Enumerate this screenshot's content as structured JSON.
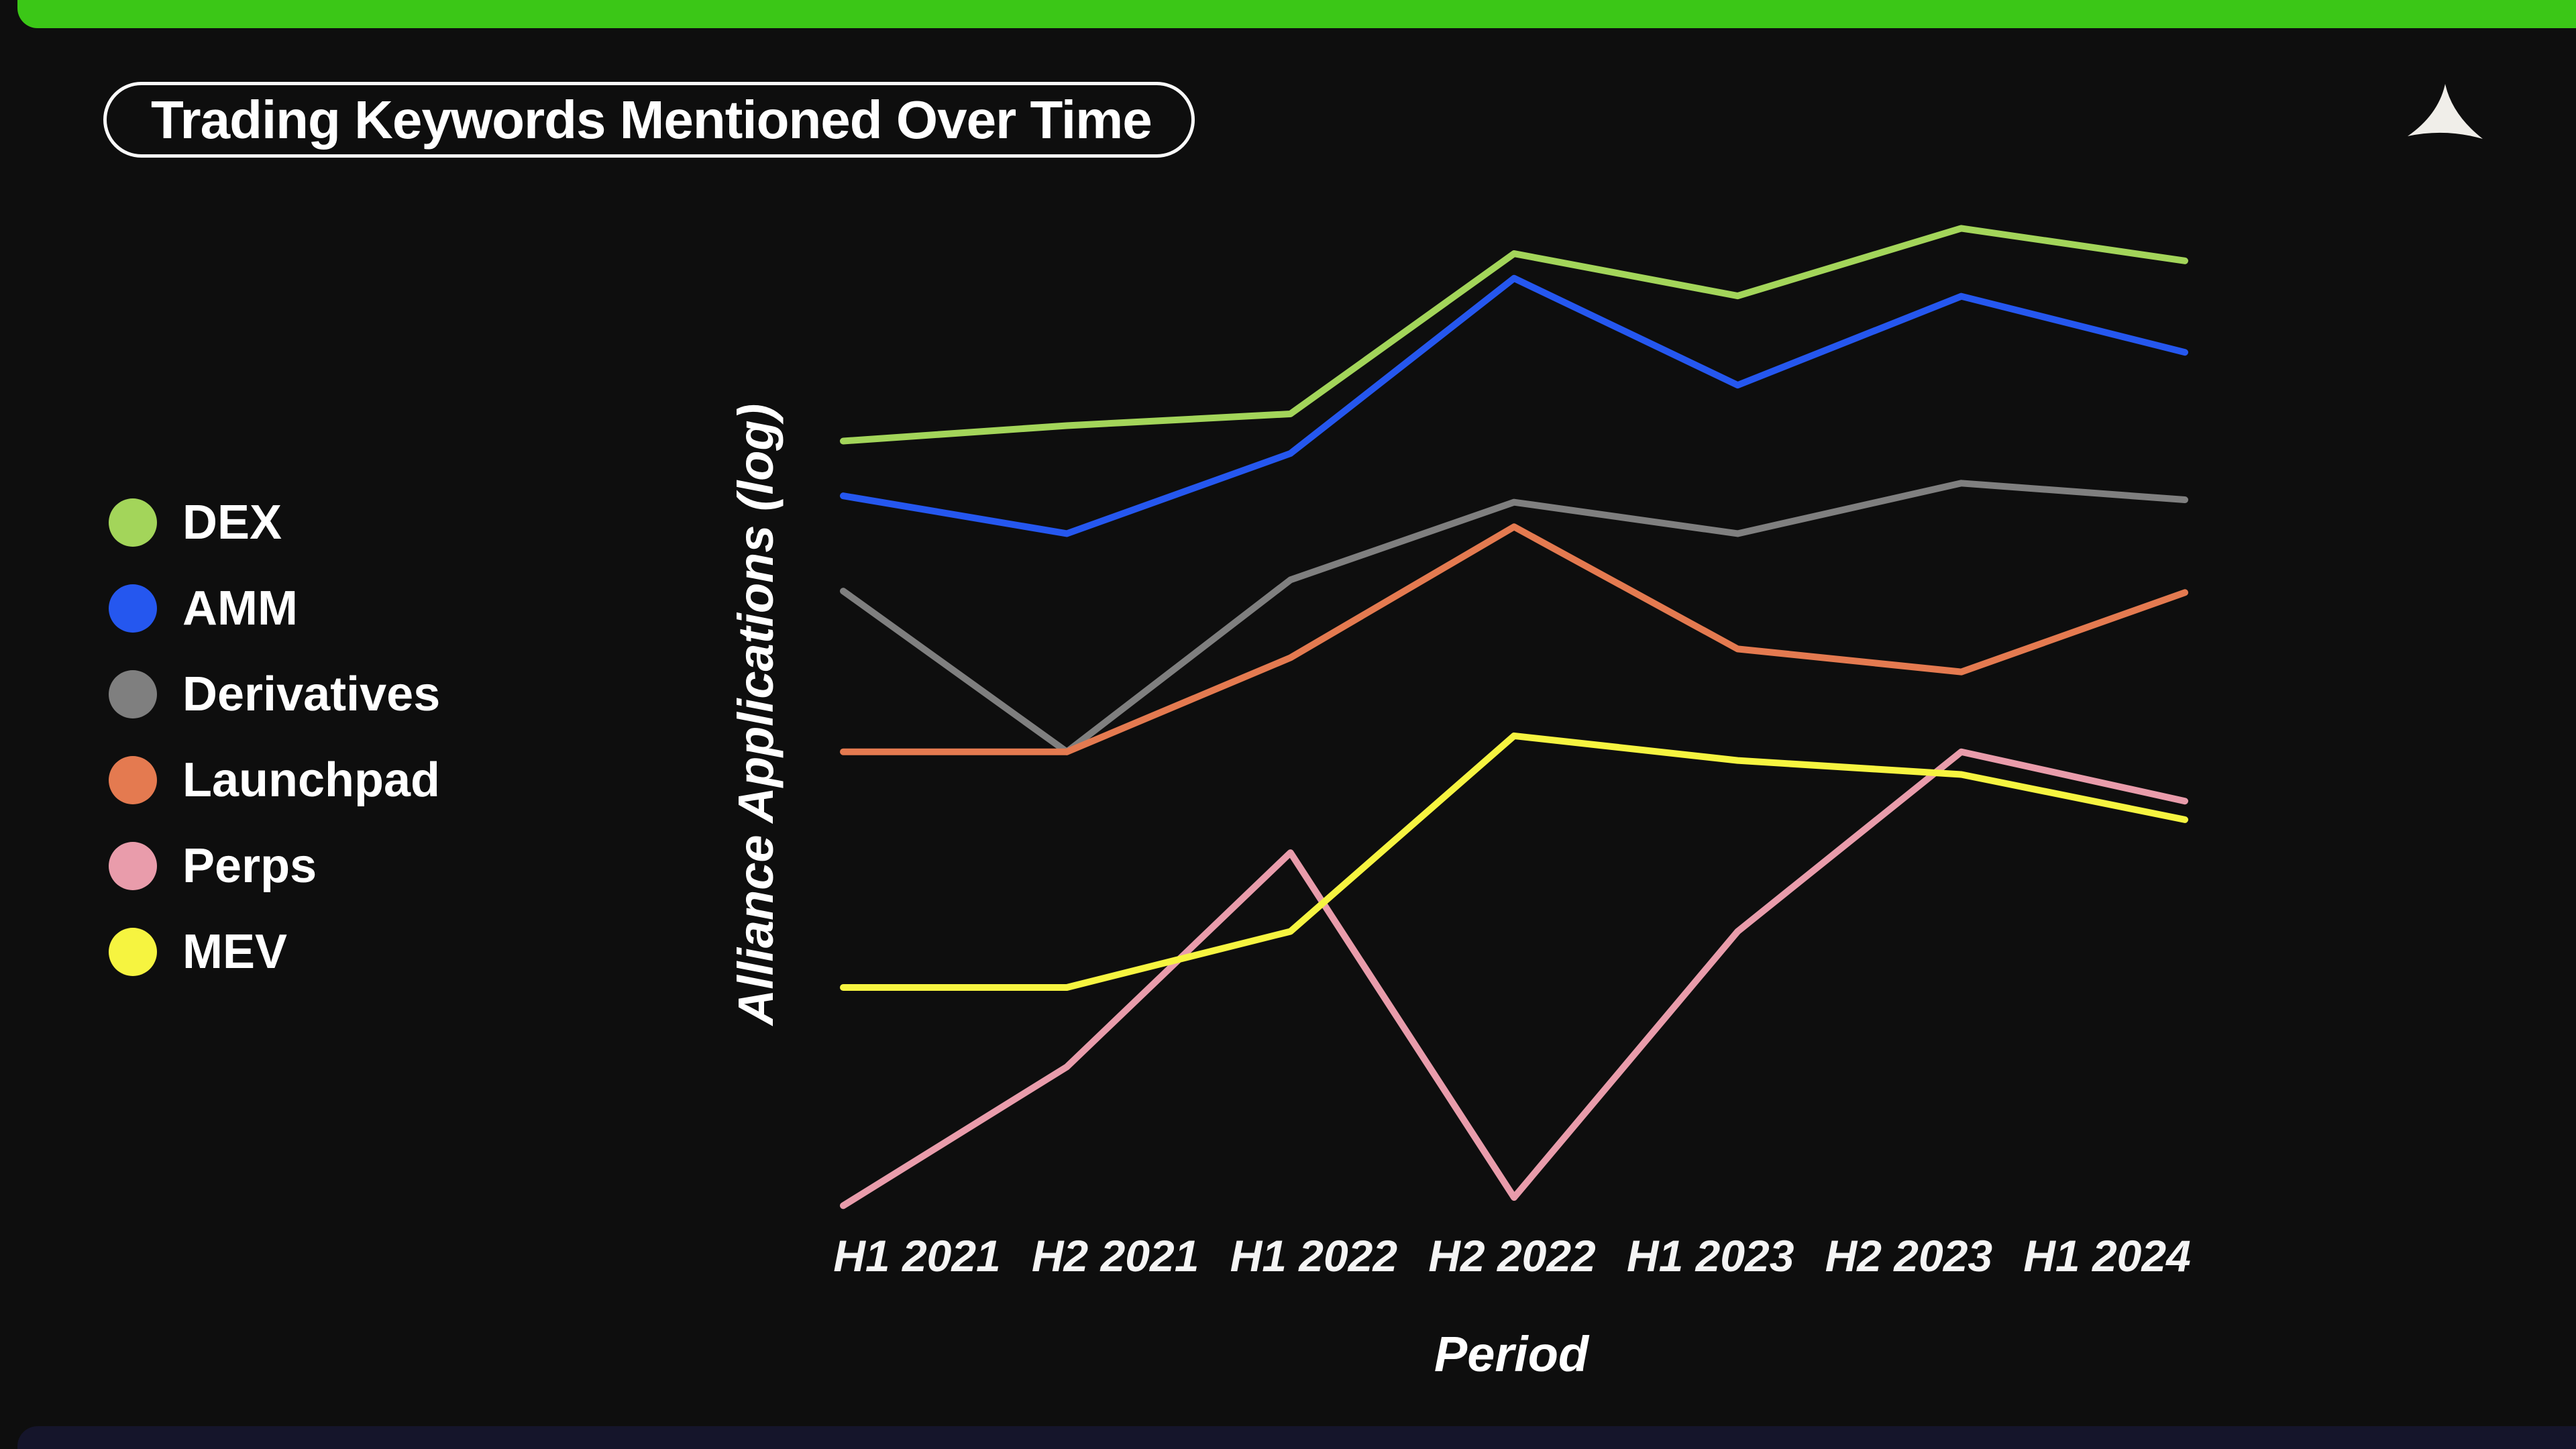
{
  "page": {
    "background": "#0e0e0e",
    "top_bar_color": "#3bc717",
    "bottom_bar_color": "#15152b",
    "logo_color": "#f0eee9"
  },
  "header": {
    "title": "Trading Keywords Mentioned Over Time",
    "logo_icon": "alliance-curved-triangle"
  },
  "chart_data": {
    "type": "line",
    "title": "Trading Keywords Mentioned Over Time",
    "categories": [
      "H1 2021",
      "H2 2021",
      "H1 2022",
      "H2 2022",
      "H1 2023",
      "H2 2023",
      "H1 2024"
    ],
    "series": [
      {
        "name": "DEX",
        "color": "#a3d55a",
        "values": [
          280,
          310,
          335,
          965,
          730,
          1140,
          920
        ]
      },
      {
        "name": "AMM",
        "color": "#2557ef",
        "values": [
          195,
          152,
          258,
          820,
          405,
          728,
          503
        ]
      },
      {
        "name": "Derivatives",
        "color": "#7f7f7f",
        "values": [
          104,
          36,
          112,
          187,
          152,
          212,
          190
        ]
      },
      {
        "name": "Launchpad",
        "color": "#e47a50",
        "values": [
          36,
          36,
          67,
          159,
          71,
          61,
          103
        ]
      },
      {
        "name": "Perps",
        "color": "#e99cab",
        "values": [
          1.8,
          4.5,
          18.5,
          1.9,
          11,
          36,
          26
        ]
      },
      {
        "name": "MEV",
        "color": "#f6f440",
        "values": [
          7.6,
          7.6,
          11,
          40,
          34,
          31,
          23
        ]
      }
    ],
    "xlabel": "Period",
    "ylabel": "Alliance Applications (log)",
    "yscale": "log",
    "ylim": [
      1,
      2000
    ],
    "grid": false,
    "axis_ticks_visible": false,
    "legend_position": "left"
  }
}
